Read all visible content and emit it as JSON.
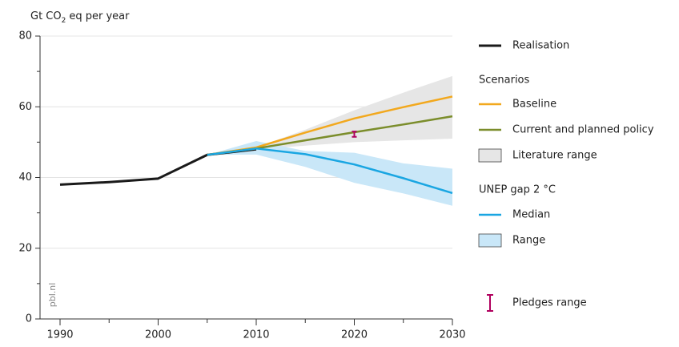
{
  "chart_data": {
    "type": "line",
    "ylabel": {
      "text": "Gt CO",
      "sub": "2",
      "rest": "eq per year"
    },
    "watermark": "pbl.nl",
    "x": [
      1990,
      1995,
      2000,
      2005,
      2010,
      2015,
      2020,
      2025,
      2030
    ],
    "xlim": [
      1990,
      2030
    ],
    "xticks": [
      1990,
      2000,
      2010,
      2020,
      2030
    ],
    "xminor": [
      1995,
      2005,
      2015,
      2025
    ],
    "ylim": [
      0,
      80
    ],
    "yticks": [
      0,
      20,
      40,
      60,
      80
    ],
    "yminor": [
      10,
      30,
      50,
      70
    ],
    "grid": true,
    "groups": [
      {
        "series": [
          {
            "name": "Realisation",
            "kind": "line",
            "color": "#1a1a1a",
            "values": [
              38,
              38.7,
              39.7,
              46.4,
              48,
              null,
              null,
              null,
              null
            ]
          }
        ]
      },
      {
        "title": "Scenarios",
        "series": [
          {
            "name": "Baseline",
            "kind": "line",
            "color": "#f2a81d",
            "values": [
              null,
              null,
              null,
              46.4,
              48.5,
              52.7,
              56.7,
              59.9,
              62.9
            ]
          },
          {
            "name": "Current and planned policy",
            "kind": "line",
            "color": "#7b8d2b",
            "values": [
              null,
              null,
              null,
              46.4,
              48.2,
              50.5,
              52.8,
              55,
              57.3
            ]
          },
          {
            "name": "Literature range",
            "kind": "range",
            "color": "#e6e6e6",
            "lower": [
              null,
              null,
              null,
              null,
              48,
              49,
              50,
              50.5,
              51
            ],
            "upper": [
              null,
              null,
              null,
              null,
              48.5,
              53.5,
              59,
              64,
              68.7
            ]
          }
        ]
      },
      {
        "title": "UNEP gap 2 °C",
        "series": [
          {
            "name": "Median",
            "kind": "line",
            "color": "#1aa6e2",
            "values": [
              null,
              null,
              null,
              46.4,
              48.2,
              46.6,
              43.7,
              39.8,
              35.6
            ]
          },
          {
            "name": "Range",
            "kind": "range",
            "color": "#c9e7f8",
            "lower": [
              null,
              null,
              null,
              46.4,
              46.5,
              43,
              38.5,
              35.5,
              32
            ],
            "upper": [
              null,
              null,
              null,
              46.4,
              50.3,
              47.5,
              47,
              44,
              42.5
            ]
          }
        ]
      },
      {
        "series": [
          {
            "name": "Pledges range",
            "kind": "errorbar",
            "color": "#b0005e",
            "lower": [
              null,
              null,
              null,
              null,
              null,
              null,
              51.5,
              null,
              null
            ],
            "upper": [
              null,
              null,
              null,
              null,
              null,
              null,
              53,
              null,
              null
            ]
          }
        ]
      }
    ]
  }
}
